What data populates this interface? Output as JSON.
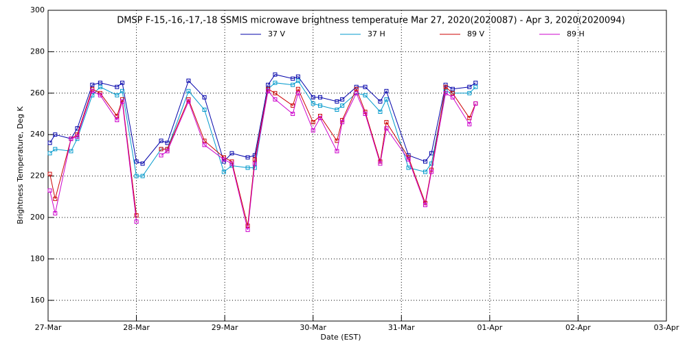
{
  "chart_data": {
    "type": "line",
    "title": "DMSP F-15,-16,-17,-18 SSMIS microwave brightness temperature Mar 27, 2020(2020087) - Apr  3, 2020(2020094)",
    "xlabel": "Date (EST)",
    "ylabel": "Brightness Temperature, Deg K",
    "x": [
      0.02,
      0.08,
      0.26,
      0.33,
      0.5,
      0.59,
      0.78,
      0.84,
      1.0,
      1.07,
      1.28,
      1.35,
      1.59,
      1.77,
      1.99,
      2.08,
      2.26,
      2.34,
      2.49,
      2.57,
      2.77,
      2.83,
      3.0,
      3.08,
      3.27,
      3.33,
      3.49,
      3.59,
      3.76,
      3.83,
      4.08,
      4.27,
      4.34,
      4.5,
      4.58,
      4.77,
      4.84
    ],
    "series": [
      {
        "name": "37 V",
        "color": "#0000aa",
        "values": [
          236,
          240,
          238,
          243,
          264,
          265,
          263,
          265,
          227,
          226,
          237,
          236,
          266,
          258,
          227,
          231,
          229,
          230,
          264,
          269,
          267,
          268,
          258,
          258,
          256,
          257,
          263,
          263,
          256,
          261,
          230,
          227,
          231,
          264,
          262,
          263,
          265
        ]
      },
      {
        "name": "37 H",
        "color": "#0099cc",
        "values": [
          231,
          233,
          232,
          238,
          259,
          263,
          259,
          261,
          220,
          220,
          233,
          233,
          261,
          252,
          222,
          225,
          224,
          224,
          262,
          265,
          264,
          266,
          255,
          254,
          252,
          254,
          260,
          259,
          251,
          257,
          224,
          222,
          226,
          261,
          260,
          260,
          263
        ]
      },
      {
        "name": "89 V",
        "color": "#cc0000",
        "values": [
          221,
          209,
          238,
          240,
          262,
          260,
          249,
          257,
          201,
          null,
          233,
          233,
          257,
          237,
          229,
          227,
          196,
          228,
          262,
          260,
          254,
          262,
          246,
          249,
          237,
          247,
          262,
          251,
          227,
          246,
          229,
          207,
          223,
          263,
          260,
          248,
          255
        ]
      },
      {
        "name": "89 H",
        "color": "#cc00cc",
        "values": [
          213,
          202,
          238,
          239,
          261,
          259,
          247,
          256,
          198,
          null,
          230,
          232,
          256,
          235,
          228,
          226,
          194,
          226,
          261,
          257,
          250,
          260,
          242,
          248,
          232,
          246,
          260,
          250,
          226,
          243,
          228,
          206,
          222,
          260,
          258,
          245,
          255
        ]
      }
    ],
    "xlim": [
      0,
      7
    ],
    "xticks": [
      {
        "value": 0,
        "label": "27-Mar"
      },
      {
        "value": 1,
        "label": "28-Mar"
      },
      {
        "value": 2,
        "label": "29-Mar"
      },
      {
        "value": 3,
        "label": "30-Mar"
      },
      {
        "value": 4,
        "label": "31-Mar"
      },
      {
        "value": 5,
        "label": "01-Apr"
      },
      {
        "value": 6,
        "label": "02-Apr"
      },
      {
        "value": 7,
        "label": "03-Apr"
      }
    ],
    "ylim": [
      150,
      300
    ],
    "yticks": [
      160,
      180,
      200,
      220,
      240,
      260,
      280,
      300
    ],
    "grid": true
  }
}
